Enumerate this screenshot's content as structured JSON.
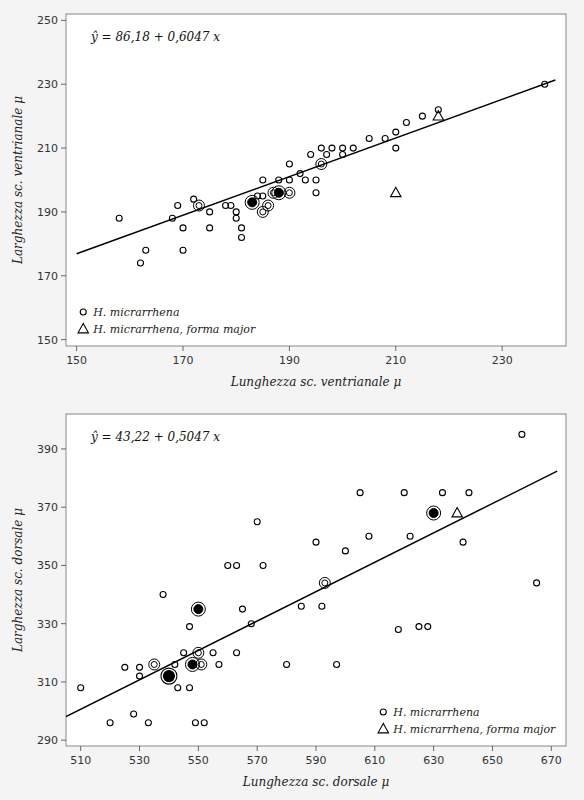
{
  "chart_data": [
    {
      "type": "scatter",
      "title": "ŷ = 86,18 + 0,6047 x",
      "x_label": "Lunghezza  sc.  ventrianale  μ",
      "y_label": "Larghezza  sc. ventrianale  μ",
      "xlim": [
        148,
        242
      ],
      "ylim": [
        148,
        252
      ],
      "xticks": [
        150,
        170,
        190,
        210,
        230
      ],
      "yticks": [
        150,
        170,
        190,
        210,
        230,
        250
      ],
      "grid": false,
      "legend": "lower left",
      "series": [
        {
          "name": "H. micrarrhena",
          "marker": "circle",
          "color": "black",
          "x": [
            158,
            162,
            163,
            168,
            169,
            170,
            170,
            172,
            173,
            175,
            175,
            178,
            179,
            180,
            180,
            181,
            181,
            183,
            184,
            185,
            185,
            185,
            186,
            187,
            188,
            188,
            190,
            190,
            190,
            192,
            193,
            194,
            195,
            195,
            196,
            196,
            197,
            198,
            200,
            200,
            202,
            205,
            208,
            210,
            210,
            212,
            215,
            218,
            238
          ],
          "values": [
            188,
            174,
            178,
            188,
            192,
            185,
            178,
            194,
            192,
            190,
            185,
            192,
            192,
            190,
            188,
            185,
            182,
            193,
            195,
            190,
            195,
            200,
            192,
            196,
            196,
            200,
            196,
            205,
            200,
            202,
            200,
            208,
            200,
            196,
            205,
            210,
            208,
            210,
            210,
            208,
            210,
            213,
            213,
            215,
            210,
            218,
            220,
            222,
            230
          ],
          "counts": [
            1,
            1,
            1,
            1,
            1,
            1,
            1,
            1,
            2,
            1,
            1,
            1,
            1,
            1,
            1,
            1,
            1,
            3,
            1,
            2,
            1,
            1,
            2,
            2,
            3,
            1,
            2,
            1,
            1,
            1,
            1,
            1,
            1,
            1,
            2,
            1,
            1,
            1,
            1,
            1,
            1,
            1,
            1,
            1,
            1,
            1,
            1,
            1,
            1
          ]
        },
        {
          "name": "H. micrarrhena, forma major",
          "marker": "triangle",
          "color": "black",
          "x": [
            210,
            218
          ],
          "values": [
            196,
            220
          ]
        },
        {
          "type": "line",
          "color": "black",
          "x": [
            150,
            240
          ],
          "values": [
            176.885,
            231.308
          ]
        }
      ]
    },
    {
      "type": "scatter",
      "title": "ŷ = 43,22 + 0,5047 x",
      "x_label": "Lunghezza  sc.  dorsale  μ",
      "y_label": "Larghezza  sc. dorsale  μ",
      "xlim": [
        505,
        675
      ],
      "ylim": [
        288,
        402
      ],
      "xticks": [
        510,
        530,
        550,
        570,
        590,
        610,
        630,
        650,
        670
      ],
      "yticks": [
        290,
        310,
        330,
        350,
        370,
        390
      ],
      "grid": false,
      "legend": "lower right",
      "series": [
        {
          "name": "H. micrarrhena",
          "marker": "circle",
          "color": "black",
          "x": [
            510,
            520,
            525,
            528,
            530,
            530,
            533,
            535,
            538,
            540,
            542,
            543,
            545,
            547,
            547,
            548,
            549,
            550,
            550,
            551,
            552,
            555,
            557,
            560,
            563,
            563,
            565,
            568,
            570,
            572,
            580,
            585,
            590,
            592,
            593,
            597,
            600,
            605,
            608,
            618,
            620,
            622,
            625,
            628,
            630,
            633,
            640,
            642,
            660,
            665
          ],
          "values": [
            308,
            296,
            315,
            299,
            315,
            312,
            296,
            316,
            340,
            312,
            316,
            308,
            320,
            329,
            308,
            316,
            296,
            335,
            320,
            316,
            296,
            320,
            316,
            350,
            350,
            320,
            335,
            330,
            365,
            350,
            316,
            336,
            358,
            336,
            344,
            316,
            355,
            375,
            360,
            328,
            375,
            360,
            329,
            329,
            368,
            375,
            358,
            375,
            395,
            344
          ],
          "counts": [
            1,
            1,
            1,
            1,
            1,
            1,
            1,
            2,
            1,
            4,
            1,
            1,
            1,
            1,
            1,
            3,
            1,
            3,
            2,
            2,
            1,
            1,
            1,
            1,
            1,
            1,
            1,
            1,
            1,
            1,
            1,
            1,
            1,
            1,
            2,
            1,
            1,
            1,
            1,
            1,
            1,
            1,
            1,
            1,
            3,
            1,
            1,
            1,
            1,
            1
          ]
        },
        {
          "name": "H. micrarrhena, forma major",
          "marker": "triangle",
          "color": "black",
          "x": [
            638
          ],
          "values": [
            368
          ]
        },
        {
          "type": "line",
          "color": "black",
          "x": [
            505,
            672
          ],
          "values": [
            298.0935,
            382.3784
          ]
        }
      ]
    }
  ]
}
